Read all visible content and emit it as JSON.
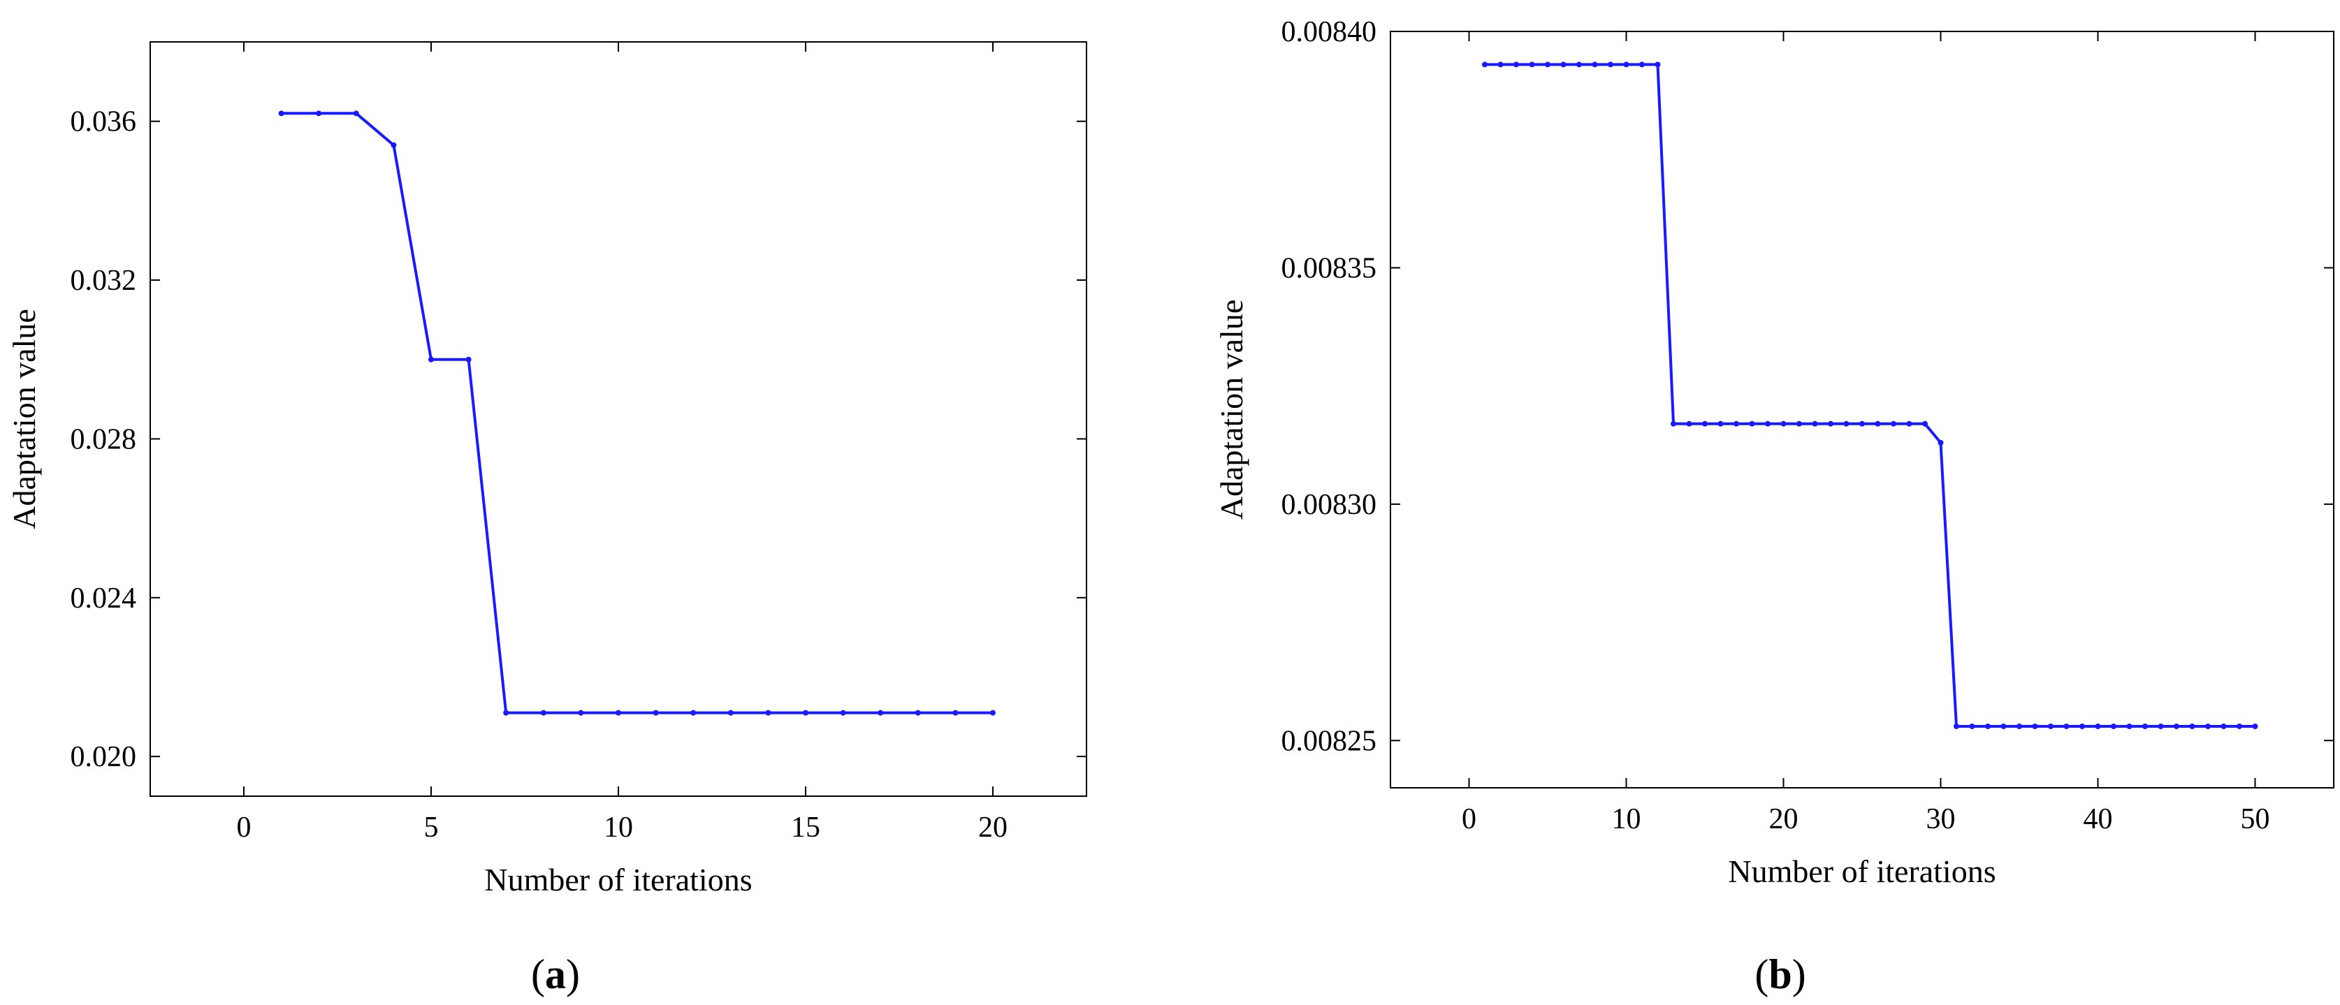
{
  "chart_data": [
    {
      "type": "line",
      "panel_label": "a",
      "xlabel": "Number of iterations",
      "ylabel": "Adaptation value",
      "xlim": [
        -2.5,
        22.5
      ],
      "ylim": [
        0.019,
        0.038
      ],
      "xticks": [
        0,
        5,
        10,
        15,
        20
      ],
      "xtick_labels": [
        "0",
        "5",
        "10",
        "15",
        "20"
      ],
      "yticks": [
        0.02,
        0.024,
        0.028,
        0.032,
        0.036
      ],
      "ytick_labels": [
        "0.020",
        "0.024",
        "0.028",
        "0.032",
        "0.036"
      ],
      "grid": false,
      "series": [
        {
          "color": "#1a1aff",
          "x": [
            1,
            2,
            3,
            4,
            5,
            6,
            7,
            8,
            9,
            10,
            11,
            12,
            13,
            14,
            15,
            16,
            17,
            18,
            19,
            20
          ],
          "y": [
            0.0362,
            0.0362,
            0.0362,
            0.0354,
            0.03,
            0.03,
            0.0211,
            0.0211,
            0.0211,
            0.0211,
            0.0211,
            0.0211,
            0.0211,
            0.0211,
            0.0211,
            0.0211,
            0.0211,
            0.0211,
            0.0211,
            0.0211
          ]
        }
      ]
    },
    {
      "type": "line",
      "panel_label": "b",
      "xlabel": "Number of iterations",
      "ylabel": "Adaptation value",
      "xlim": [
        -5,
        55
      ],
      "ylim": [
        0.00824,
        0.0084
      ],
      "xticks": [
        0,
        10,
        20,
        30,
        40,
        50
      ],
      "xtick_labels": [
        "0",
        "10",
        "20",
        "30",
        "40",
        "50"
      ],
      "yticks": [
        0.00825,
        0.0083,
        0.00835,
        0.0084
      ],
      "ytick_labels": [
        "0.00825",
        "0.00830",
        "0.00835",
        "0.00840"
      ],
      "grid": false,
      "series": [
        {
          "color": "#1a1aff",
          "x": [
            1,
            2,
            3,
            4,
            5,
            6,
            7,
            8,
            9,
            10,
            11,
            12,
            13,
            14,
            15,
            16,
            17,
            18,
            19,
            20,
            21,
            22,
            23,
            24,
            25,
            26,
            27,
            28,
            29,
            30,
            31,
            32,
            33,
            34,
            35,
            36,
            37,
            38,
            39,
            40,
            41,
            42,
            43,
            44,
            45,
            46,
            47,
            48,
            49,
            50
          ],
          "y": [
            0.008393,
            0.008393,
            0.008393,
            0.008393,
            0.008393,
            0.008393,
            0.008393,
            0.008393,
            0.008393,
            0.008393,
            0.008393,
            0.008393,
            0.008317,
            0.008317,
            0.008317,
            0.008317,
            0.008317,
            0.008317,
            0.008317,
            0.008317,
            0.008317,
            0.008317,
            0.008317,
            0.008317,
            0.008317,
            0.008317,
            0.008317,
            0.008317,
            0.008317,
            0.008313,
            0.008253,
            0.008253,
            0.008253,
            0.008253,
            0.008253,
            0.008253,
            0.008253,
            0.008253,
            0.008253,
            0.008253,
            0.008253,
            0.008253,
            0.008253,
            0.008253,
            0.008253,
            0.008253,
            0.008253,
            0.008253,
            0.008253,
            0.008253
          ]
        }
      ]
    }
  ]
}
